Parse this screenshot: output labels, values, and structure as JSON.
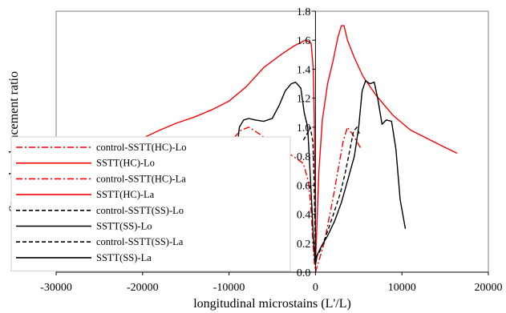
{
  "chart_data": {
    "type": "line",
    "xlabel": "longitudinal microstains (L'/L)",
    "ylabel": "Strength enhancement ratio",
    "xlim": [
      -30000,
      20000
    ],
    "ylim": [
      0.0,
      1.8
    ],
    "x_ticks": [
      "-30000",
      "-20000",
      "-10000",
      "0",
      "10000",
      "20000"
    ],
    "y_ticks": [
      "0.0",
      "0.2",
      "0.4",
      "0.6",
      "0.8",
      "1.0",
      "1.2",
      "1.4",
      "1.6",
      "1.8"
    ],
    "grid": false,
    "legend_position": "left",
    "series": [
      {
        "name": "control-SSTT(HC)-Lo",
        "color": "#ff0000",
        "dash": "dashdot",
        "x": [
          -9400,
          -8600,
          -7700,
          -6400,
          -4600,
          -2600,
          -1400,
          -800,
          -500,
          -300,
          -120,
          0
        ],
        "y": [
          0.93,
          0.98,
          1.0,
          0.95,
          0.87,
          0.8,
          0.75,
          0.62,
          0.42,
          0.2,
          0.06,
          0.01
        ]
      },
      {
        "name": "SSTT(HC)-Lo",
        "color": "#ff0000",
        "dash": "solid",
        "x": [
          -19800,
          -18000,
          -16000,
          -14000,
          -12000,
          -10000,
          -8000,
          -6000,
          -4000,
          -2500,
          -1200,
          -500,
          -250,
          -120,
          -40,
          0
        ],
        "y": [
          0.93,
          0.98,
          1.03,
          1.07,
          1.12,
          1.18,
          1.28,
          1.41,
          1.5,
          1.56,
          1.6,
          1.58,
          1.4,
          1.0,
          0.5,
          0.05
        ]
      },
      {
        "name": "control-SSTT(HC)-La",
        "color": "#ff0000",
        "dash": "dashdot",
        "x": [
          0,
          250,
          600,
          1000,
          1500,
          2000,
          2600,
          3200,
          3700,
          4300,
          4800,
          5300
        ],
        "y": [
          0.0,
          0.05,
          0.12,
          0.2,
          0.35,
          0.5,
          0.7,
          0.9,
          1.0,
          0.95,
          0.9,
          0.85
        ]
      },
      {
        "name": "SSTT(HC)-La",
        "color": "#ff0000",
        "dash": "solid",
        "x": [
          0,
          150,
          400,
          800,
          1400,
          2000,
          2600,
          3000,
          3300,
          3700,
          4500,
          5500,
          7000,
          9000,
          11000,
          13000,
          15000,
          16400
        ],
        "y": [
          0.05,
          0.3,
          0.7,
          1.05,
          1.3,
          1.45,
          1.62,
          1.7,
          1.7,
          1.6,
          1.48,
          1.35,
          1.22,
          1.08,
          0.98,
          0.92,
          0.86,
          0.82
        ]
      },
      {
        "name": "control-SSTT(SS)-Lo",
        "color": "#000000",
        "dash": "dashed",
        "x": [
          -1400,
          -1000,
          -600,
          -300,
          -150,
          -60,
          0
        ],
        "y": [
          0.91,
          0.95,
          1.0,
          0.9,
          0.6,
          0.3,
          0.1
        ]
      },
      {
        "name": "SSTT(SS)-Lo",
        "color": "#000000",
        "dash": "solid",
        "x": [
          -9800,
          -9300,
          -8800,
          -8300,
          -7700,
          -7000,
          -6000,
          -5000,
          -4200,
          -3500,
          -2800,
          -2300,
          -1700,
          -1300,
          -900,
          -500,
          -250,
          -80,
          0
        ],
        "y": [
          0.3,
          0.72,
          1.0,
          1.05,
          1.06,
          1.05,
          1.04,
          1.06,
          1.15,
          1.25,
          1.3,
          1.31,
          1.27,
          1.1,
          1.0,
          0.55,
          0.25,
          0.1,
          0.05
        ]
      },
      {
        "name": "control-SSTT(SS)-La",
        "color": "#000000",
        "dash": "dashed",
        "x": [
          0,
          400,
          900,
          1500,
          2200,
          2900,
          3500,
          4000,
          4400,
          4800,
          5100
        ],
        "y": [
          0.1,
          0.13,
          0.2,
          0.3,
          0.42,
          0.55,
          0.7,
          0.85,
          0.97,
          1.0,
          0.95
        ]
      },
      {
        "name": "SSTT(SS)-La",
        "color": "#000000",
        "dash": "solid",
        "x": [
          0,
          200,
          700,
          1400,
          2200,
          3000,
          3800,
          4500,
          5000,
          5400,
          5800,
          6300,
          6800,
          7200,
          7700,
          8200,
          8800,
          9300,
          9800,
          10400
        ],
        "y": [
          0.05,
          0.12,
          0.18,
          0.25,
          0.35,
          0.48,
          0.65,
          0.8,
          1.0,
          1.25,
          1.32,
          1.3,
          1.31,
          1.2,
          1.02,
          1.05,
          1.04,
          0.85,
          0.5,
          0.3
        ]
      }
    ]
  }
}
